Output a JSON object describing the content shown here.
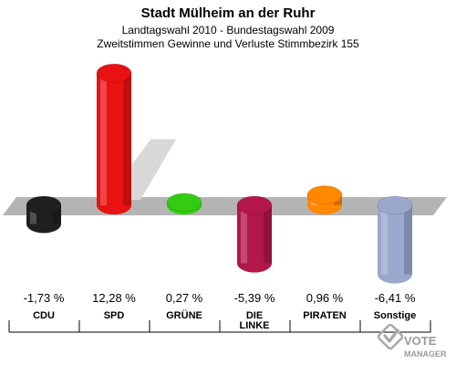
{
  "title": "Stadt Mülheim an der Ruhr",
  "subtitle1": "Landtagswahl 2010 - Bundestagswahl 2009",
  "subtitle2": "Zweitstimmen Gewinne und Verluste Stimmbezirk 155",
  "logo": {
    "line1": "VOTE",
    "line2": "MANAGER"
  },
  "chart_data": {
    "type": "bar",
    "title": "Stadt Mülheim an der Ruhr",
    "categories": [
      "CDU",
      "SPD",
      "GRÜNE",
      "DIE LINKE",
      "PIRATEN",
      "Sonstige"
    ],
    "category_lines": [
      [
        "CDU"
      ],
      [
        "SPD"
      ],
      [
        "GRÜNE"
      ],
      [
        "DIE",
        "LINKE"
      ],
      [
        "PIRATEN"
      ],
      [
        "Sonstige"
      ]
    ],
    "values": [
      -1.73,
      12.28,
      0.27,
      -5.39,
      0.96,
      -6.41
    ],
    "value_labels": [
      "-1,73 %",
      "12,28 %",
      "0,27 %",
      "-5,39 %",
      "0,96 %",
      "-6,41 %"
    ],
    "colors": [
      "#1f1f1f",
      "#e81212",
      "#33cc11",
      "#b3164a",
      "#ff8800",
      "#9aa8cc"
    ],
    "ylim": [
      -6.5,
      12.5
    ],
    "grid": false,
    "legend": "none"
  }
}
